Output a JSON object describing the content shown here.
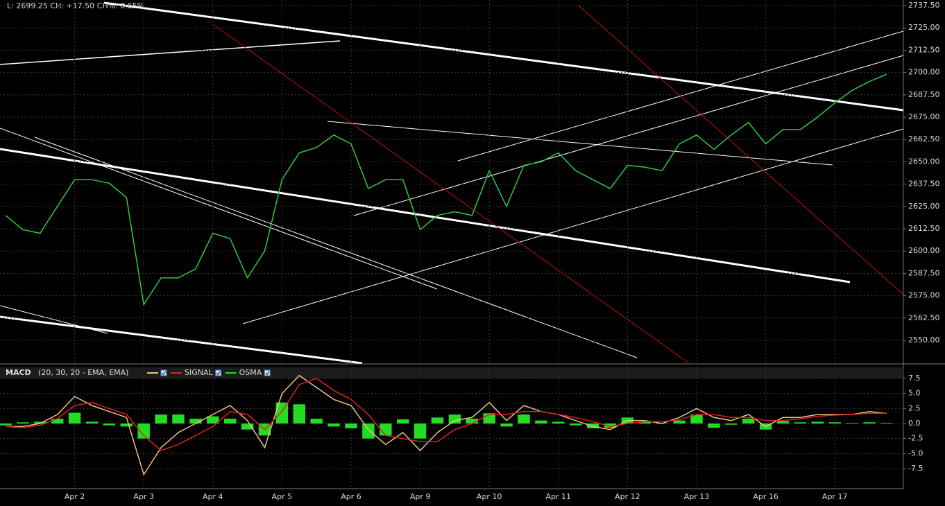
{
  "chart_data": [
    {
      "type": "line",
      "status": "L: 2699.25 CH: +17.50 CH%: 0.65%",
      "grid": true,
      "ylim": [
        2537.2,
        2740.6
      ],
      "yticks": [
        {
          "value": 2550,
          "label": "2550.00"
        },
        {
          "value": 2562.5,
          "label": "2562.50"
        },
        {
          "value": 2575,
          "label": "2575.00"
        },
        {
          "value": 2587.5,
          "label": "2587.50"
        },
        {
          "value": 2600,
          "label": "2600.00"
        },
        {
          "value": 2612.5,
          "label": "2612.50"
        },
        {
          "value": 2625,
          "label": "2625.00"
        },
        {
          "value": 2637.5,
          "label": "2637.50"
        },
        {
          "value": 2650,
          "label": "2650.00"
        },
        {
          "value": 2662.5,
          "label": "2662.50"
        },
        {
          "value": 2675,
          "label": "2675.00"
        },
        {
          "value": 2687.5,
          "label": "2687.50"
        },
        {
          "value": 2700,
          "label": "2700.00"
        },
        {
          "value": 2712.5,
          "label": "2712.50"
        },
        {
          "value": 2725,
          "label": "2725.00"
        },
        {
          "value": 2737.5,
          "label": "2737.50"
        }
      ],
      "series": [
        {
          "color": "#2ecc40",
          "values": [
            2620,
            2612,
            2610,
            2625,
            2640,
            2640,
            2638,
            2630,
            2570,
            2585,
            2585,
            2590,
            2610,
            2607,
            2585,
            2600,
            2640,
            2655,
            2658,
            2665,
            2660,
            2635,
            2640,
            2640,
            2612,
            2620,
            2622,
            2620,
            2645,
            2625,
            2648,
            2650,
            2655,
            2645,
            2640,
            2635,
            2648,
            2647,
            2645,
            2660,
            2665,
            2657,
            2665,
            2672,
            2660,
            2668,
            2668,
            2675,
            2683,
            2690,
            2695,
            2699
          ]
        }
      ]
    },
    {
      "type": "line",
      "title": "MACD",
      "subtitle": "(20, 30, 20 - EMA, EMA)",
      "grid": true,
      "categories": [
        null,
        null,
        null,
        null,
        "Apr 2",
        null,
        null,
        null,
        "Apr 3",
        null,
        null,
        null,
        "Apr 4",
        null,
        null,
        null,
        "Apr 5",
        null,
        null,
        null,
        "Apr 6",
        null,
        null,
        null,
        "Apr 9",
        null,
        null,
        null,
        "Apr 10",
        null,
        null,
        null,
        "Apr 11",
        null,
        null,
        null,
        "Apr 12",
        null,
        null,
        null,
        "Apr 13",
        null,
        null,
        null,
        "Apr 16",
        null,
        null,
        null,
        "Apr 17",
        null,
        null,
        null
      ],
      "ylim": [
        -10.85,
        9.35
      ],
      "yticks": [
        7.5,
        {
          "value": 5,
          "label": "5.0"
        },
        2.5,
        {
          "value": 0,
          "label": "0.0"
        },
        -2.5,
        {
          "value": -5,
          "label": "-5.0"
        },
        -7.5
      ],
      "series": [
        {
          "color": "#f0c27a",
          "values": [
            -0.5,
            -0.5,
            0,
            1.5,
            4.5,
            3,
            2,
            1,
            -8.5,
            -4,
            -1.5,
            0,
            1.5,
            3,
            0.5,
            -4,
            5,
            8,
            6,
            4,
            3,
            -1,
            -3.5,
            -1.5,
            -4.5,
            -1.5,
            0.5,
            1,
            3.5,
            0.5,
            3,
            2,
            1.5,
            0.5,
            -0.5,
            -1,
            0.5,
            0.5,
            0,
            1,
            2.5,
            1,
            0.5,
            1.5,
            -0.5,
            1,
            1,
            1.5,
            1.5,
            1.5,
            2,
            1.7
          ]
        },
        {
          "name": "SIGNAL",
          "color": "#e02020",
          "values": [
            -0.5,
            -0.7,
            -0.3,
            0.8,
            3,
            3.5,
            2.5,
            1.5,
            -2,
            -4.5,
            -3.5,
            -2,
            -0.5,
            2,
            1.5,
            -1,
            2,
            6.5,
            7.5,
            5.5,
            4,
            1.5,
            -2,
            -2.5,
            -3,
            -3,
            -1,
            0,
            1.5,
            1.5,
            2,
            2,
            1.5,
            1,
            0.3,
            -0.5,
            0,
            0.3,
            0.3,
            0.6,
            1.5,
            1.5,
            1,
            1,
            0.5,
            0.5,
            0.8,
            1.2,
            1.4,
            1.5,
            1.7,
            1.7
          ]
        },
        {
          "name": "OSMA",
          "type": "bar",
          "color": "#22dd22",
          "values": [
            -0.3,
            0.2,
            0.3,
            0.8,
            1.8,
            0.3,
            -0.3,
            -0.5,
            -2.5,
            1.5,
            1.5,
            0.8,
            1.2,
            0.8,
            -1,
            -2,
            3.5,
            3.2,
            0.8,
            -0.5,
            -0.8,
            -2.5,
            -2,
            0.7,
            -2.5,
            1,
            1.5,
            0.8,
            1.7,
            -0.5,
            1.5,
            0.5,
            0.3,
            -0.3,
            -0.8,
            -0.7,
            1,
            0.3,
            0,
            0.5,
            1.5,
            -0.7,
            -0.2,
            0.8,
            -1,
            0.4,
            0.2,
            0.3,
            0.2,
            0.1,
            0.2,
            0.1
          ]
        }
      ]
    }
  ]
}
